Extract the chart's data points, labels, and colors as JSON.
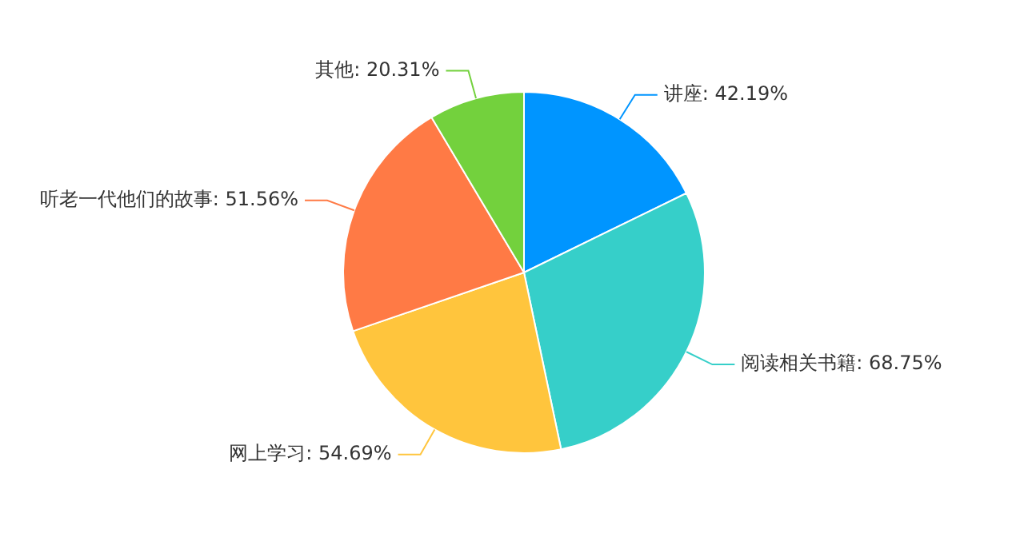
{
  "chart_data": {
    "type": "pie",
    "categories": [
      "讲座",
      "阅读相关书籍",
      "网上学习",
      "听老一代他们的故事",
      "其他"
    ],
    "values": [
      42.19,
      68.75,
      54.69,
      51.56,
      20.31
    ],
    "value_labels": [
      "42.19%",
      "68.75%",
      "54.69%",
      "51.56%",
      "20.31%"
    ],
    "colors": [
      "#0095ff",
      "#36cfc9",
      "#ffc53d",
      "#ff7a45",
      "#73d13d"
    ],
    "legend": false
  }
}
